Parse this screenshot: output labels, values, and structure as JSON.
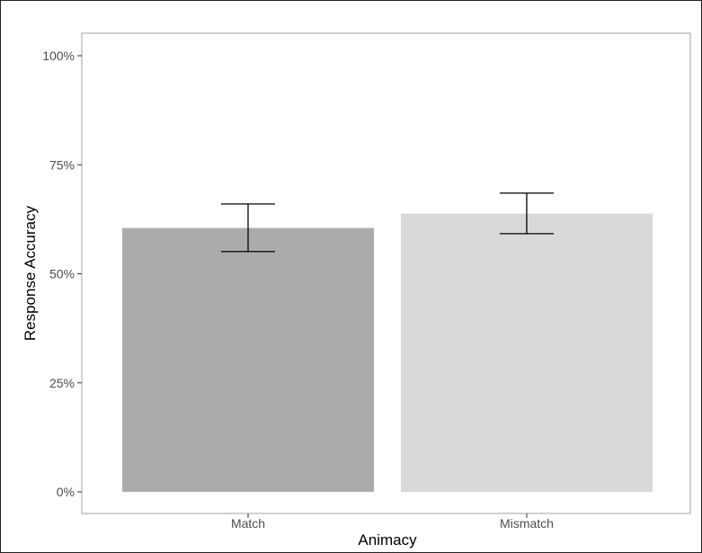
{
  "chart_data": {
    "type": "bar",
    "categories": [
      "Match",
      "Mismatch"
    ],
    "values": [
      60.5,
      63.8
    ],
    "error_low": [
      55.1,
      59.2
    ],
    "error_high": [
      66.0,
      68.5
    ],
    "xlabel": "Animacy",
    "ylabel": "Response Accuracy",
    "ylim": [
      0,
      100
    ],
    "y_ticks": [
      0,
      25,
      50,
      75,
      100
    ],
    "y_tick_labels": [
      "0%",
      "25%",
      "50%",
      "75%",
      "100%"
    ],
    "bar_colors": [
      "#ababab",
      "#d9d9d9"
    ],
    "grid": false,
    "legend": "none"
  }
}
